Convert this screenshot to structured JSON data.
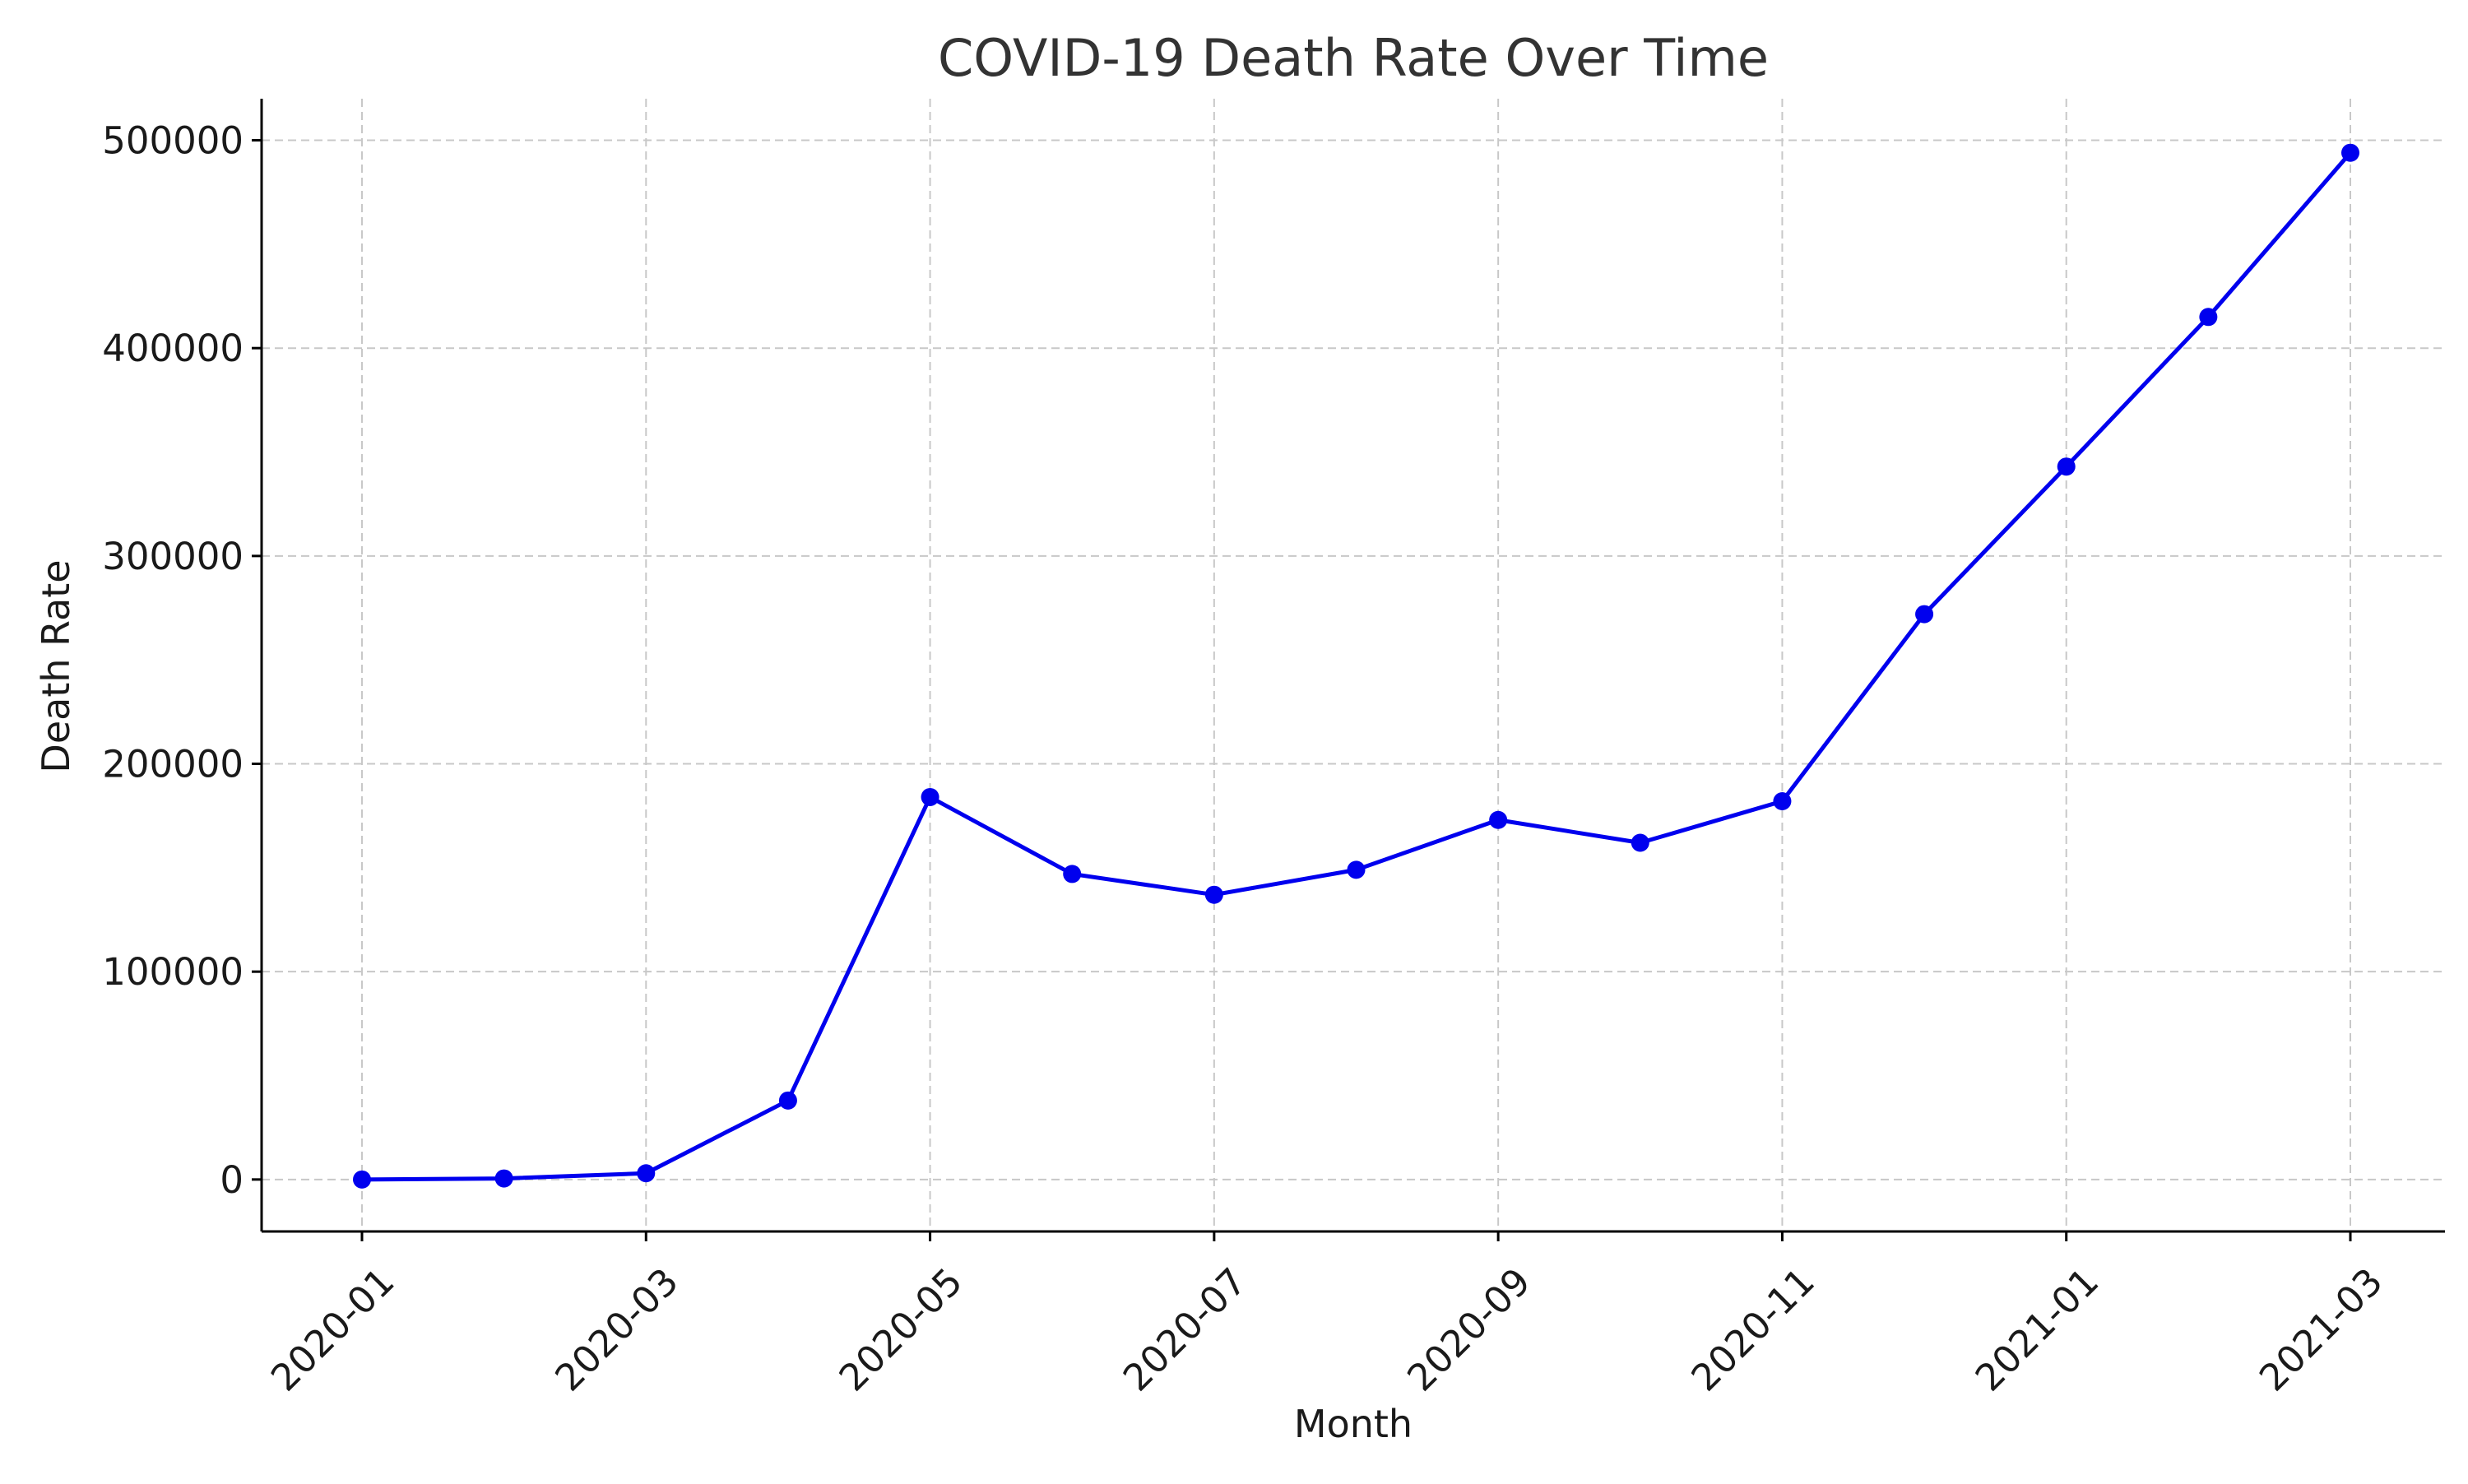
{
  "chart_data": {
    "type": "line",
    "title": "COVID-19 Death Rate Over Time",
    "xlabel": "Month",
    "ylabel": "Death Rate",
    "x": [
      "2020-01",
      "2020-02",
      "2020-03",
      "2020-04",
      "2020-05",
      "2020-06",
      "2020-07",
      "2020-08",
      "2020-09",
      "2020-10",
      "2020-11",
      "2020-12",
      "2021-01",
      "2021-02",
      "2021-03"
    ],
    "x_ticks": [
      "2020-01",
      "2020-03",
      "2020-05",
      "2020-07",
      "2020-09",
      "2020-11",
      "2021-01",
      "2021-03"
    ],
    "y_ticks": [
      0,
      100000,
      200000,
      300000,
      400000,
      500000
    ],
    "ylim": [
      -25000,
      520000
    ],
    "series": [
      {
        "values": [
          0,
          500,
          3000,
          38000,
          184000,
          147000,
          137000,
          149000,
          173000,
          162000,
          182000,
          272000,
          343000,
          415000,
          494000
        ],
        "color": "#0000ee"
      }
    ],
    "grid": true,
    "legend": "none"
  }
}
